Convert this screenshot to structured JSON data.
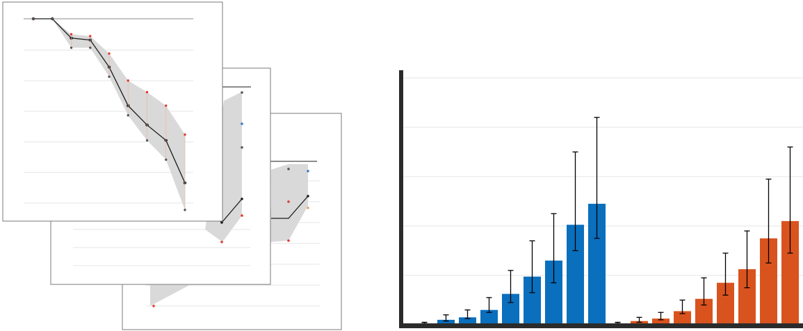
{
  "colors": {
    "blue": "#0a6fbd",
    "orange": "#d9531e",
    "band": "#d9d9d9",
    "mean_line": "#1a1a1a",
    "marker_red": "#e03a2e",
    "marker_orange": "#f0a060",
    "marker_blue": "#3a78c2",
    "marker_dark": "#555555",
    "grid": "#e6e6e6",
    "axis": "#2b2b2b"
  },
  "chart_data": [
    {
      "type": "line",
      "title": "",
      "xlabel": "",
      "ylabel": "",
      "grid": true,
      "x": [
        1,
        2,
        3,
        4,
        5,
        6,
        7,
        8,
        9,
        10
      ],
      "series": [
        {
          "role": "mean",
          "values": [
            0.0,
            0.0,
            -0.1,
            -0.11,
            -0.25,
            -0.45,
            -0.55,
            -0.63,
            -0.85,
            null
          ]
        },
        {
          "role": "band_upper",
          "values": [
            0.0,
            0.0,
            -0.08,
            -0.09,
            -0.18,
            -0.32,
            -0.38,
            -0.45,
            -0.6,
            null
          ]
        },
        {
          "role": "band_lower",
          "values": [
            0.0,
            0.0,
            -0.15,
            -0.15,
            -0.3,
            -0.5,
            -0.63,
            -0.73,
            -0.99,
            null
          ]
        }
      ]
    },
    {
      "type": "bar",
      "title": "",
      "xlabel": "",
      "ylabel": "",
      "grid": true,
      "ylim": [
        0,
        100
      ],
      "series": [
        {
          "color": "blue",
          "values": [
            0.5,
            2,
            3,
            6,
            12.5,
            19.5,
            26,
            40.5,
            49
          ],
          "err_low": [
            0.5,
            1.5,
            2.5,
            5,
            9,
            13,
            17,
            30,
            35
          ],
          "err_high": [
            1,
            4,
            6,
            11,
            22,
            34,
            45,
            70,
            84
          ]
        },
        {
          "color": "orange",
          "values": [
            0.5,
            1.5,
            2.5,
            5.5,
            10.5,
            17,
            22.5,
            35,
            42
          ],
          "err_low": [
            0.5,
            1,
            2,
            4.5,
            8,
            12,
            15,
            25,
            29
          ],
          "err_high": [
            1,
            3,
            5,
            10,
            19,
            29,
            38,
            59,
            72
          ]
        }
      ]
    }
  ]
}
